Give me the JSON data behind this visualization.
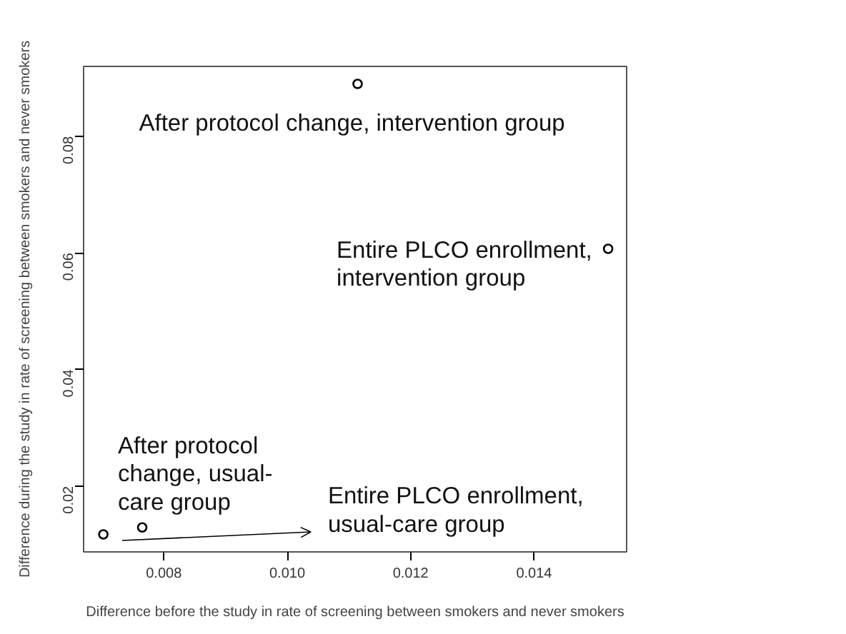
{
  "chart_data": {
    "type": "scatter",
    "xlabel": "Difference before the study in rate of screening between smokers and never smokers",
    "ylabel": "Difference during the study in rate of screening between smokers and never smokers",
    "x": [
      0.00702,
      0.00765,
      0.01114,
      0.0152
    ],
    "values": [
      0.0117,
      0.0129,
      0.089,
      0.0607
    ],
    "color": "#000000",
    "marker": "circle",
    "grid": false,
    "xlim": [
      0.0067,
      0.0155
    ],
    "ylim": [
      0.0087,
      0.092
    ],
    "xticks": [
      0.008,
      {
        "value": 0.01,
        "label": "0.010"
      },
      0.012,
      0.014
    ],
    "yticks": [
      0.02,
      0.04,
      0.06,
      0.08
    ],
    "annotations": [
      "Entire PLCO enrollment,\nusual-care group",
      {
        "text": "After protocol\nchange, usual-\ncare group",
        "x": 0.00765,
        "y": 0.0129
      },
      {
        "text": "After protocol change, intervention group",
        "x": 0.01114,
        "y": 0.089
      },
      {
        "text": "Entire PLCO enrollment,\nintervention group",
        "x": 0.0152,
        "y": 0.0607
      }
    ]
  }
}
